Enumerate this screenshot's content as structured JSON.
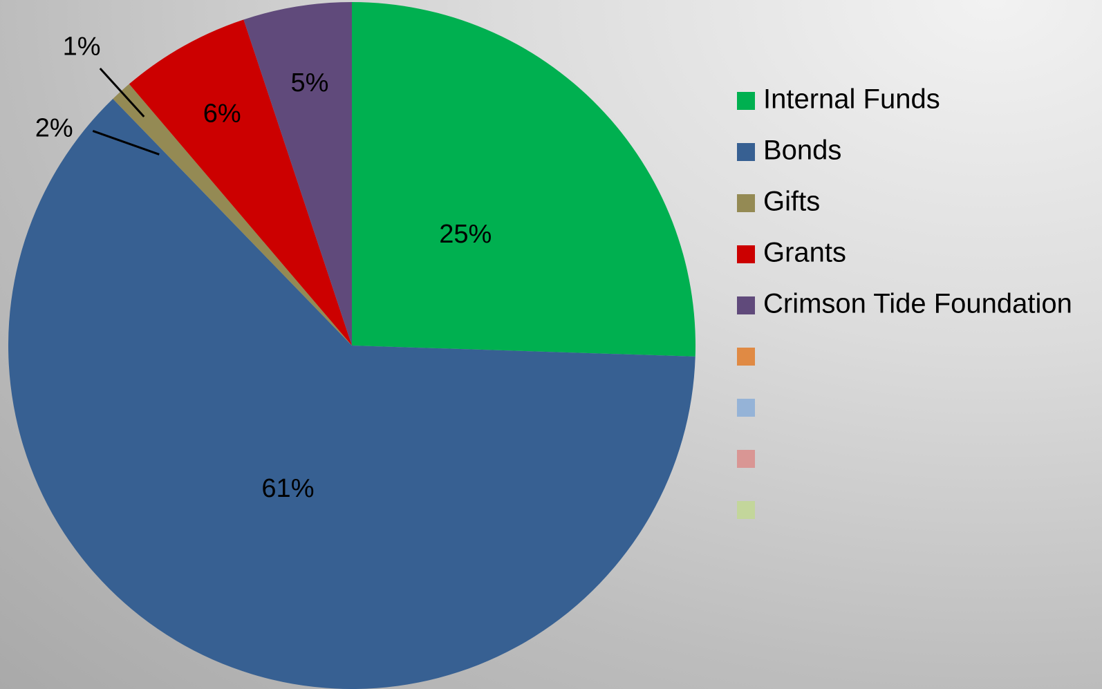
{
  "chart_data": {
    "type": "pie",
    "slices": [
      {
        "name": "Internal Funds",
        "value": 25,
        "label": "25%",
        "color": "#00b050"
      },
      {
        "name": "Bonds",
        "value": 61,
        "label": "61%",
        "color": "#376092"
      },
      {
        "name": "Gifts",
        "value": 1,
        "label": "1%",
        "color": "#948a54"
      },
      {
        "name": "Grants",
        "value": 6,
        "label": "6%",
        "color": "#cc0000"
      },
      {
        "name": "Crimson Tide Foundation",
        "value": 5,
        "label": "5%",
        "color": "#604a7b"
      }
    ],
    "outside_labels": [
      {
        "label": "2%"
      }
    ],
    "legend_placement": "right",
    "legend_extra_swatches": [
      "#e08a44",
      "#95b3d7",
      "#d99694",
      "#c3d69b"
    ]
  }
}
